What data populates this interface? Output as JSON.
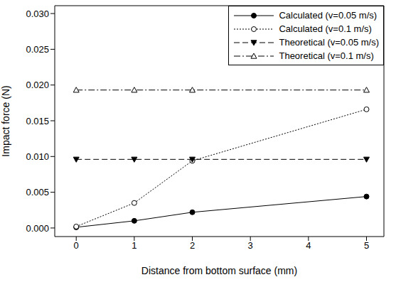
{
  "chart_data": {
    "type": "line",
    "x_label": "Distance from bottom surface (mm)",
    "y_label": "Impact force (N)",
    "x": [
      0,
      1,
      2,
      5
    ],
    "xlim": [
      -0.37,
      5.3
    ],
    "xticks": [
      0,
      1,
      2,
      3,
      4,
      5
    ],
    "ylim": [
      -0.0012,
      0.0311
    ],
    "yticks": [
      {
        "value": 0,
        "label": "0.000"
      },
      {
        "value": 0.005,
        "label": "0.005"
      },
      {
        "value": 0.01,
        "label": "0.010"
      },
      {
        "value": 0.015,
        "label": "0.015"
      },
      {
        "value": 0.02,
        "label": "0.020"
      },
      {
        "value": 0.025,
        "label": "0.025"
      },
      {
        "value": 0.03,
        "label": "0.030"
      }
    ],
    "grid": false,
    "legend": "upper right",
    "series": [
      {
        "name": "Calculated (v=0.05 m/s)",
        "color": "#000000",
        "marker": "circle",
        "line_style": "solid",
        "values": [
          0.0001,
          0.001,
          0.0022,
          0.0044
        ]
      },
      {
        "name": "Calculated (v=0.1 m/s)",
        "color": "#000000",
        "marker": "circle-open",
        "line_style": "dotted",
        "values": [
          0.0002,
          0.0035,
          0.0094,
          0.0166
        ]
      },
      {
        "name": "Theoretical (v=0.05 m/s)",
        "color": "#000000",
        "marker": "triangle-down",
        "line_style": "dashed",
        "values": [
          0.0096,
          0.0096,
          0.0096,
          0.0096
        ]
      },
      {
        "name": "Theoretical (v=0.1 m/s)",
        "color": "#000000",
        "marker": "triangle-up-open",
        "line_style": "dashdot",
        "values": [
          0.0193,
          0.0193,
          0.0193,
          0.0193
        ]
      }
    ]
  }
}
